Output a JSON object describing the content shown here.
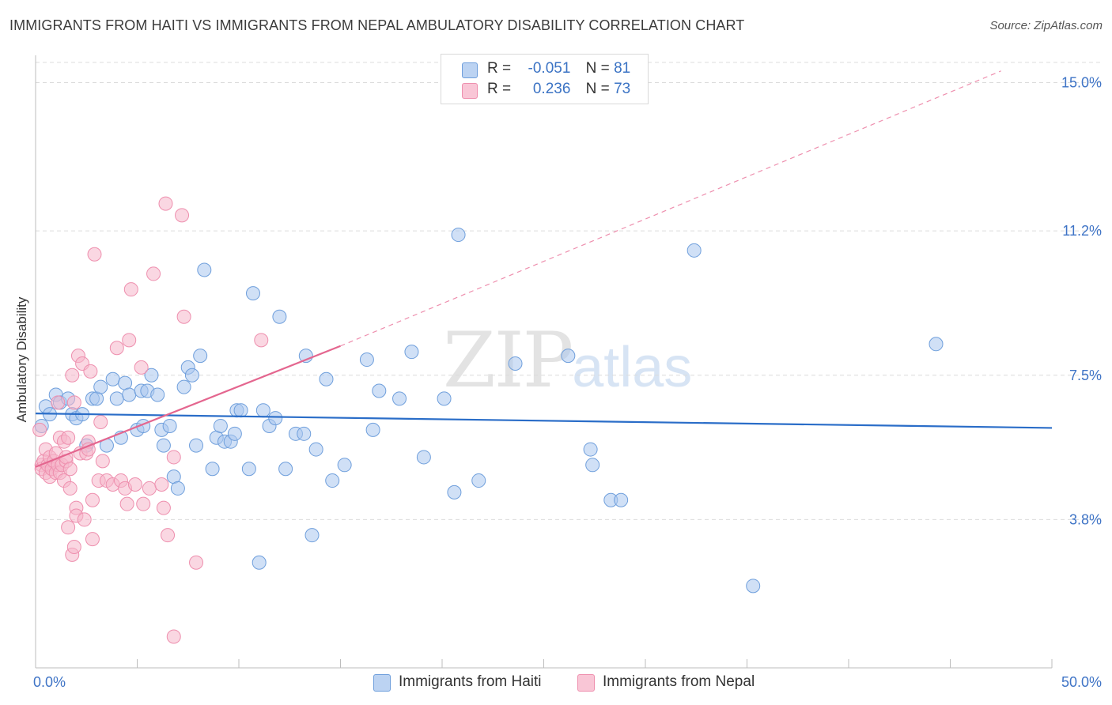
{
  "header": {
    "title": "IMMIGRANTS FROM HAITI VS IMMIGRANTS FROM NEPAL AMBULATORY DISABILITY CORRELATION CHART",
    "source": "Source: ZipAtlas.com"
  },
  "watermark": {
    "zip": "ZIP",
    "atlas": "atlas"
  },
  "legend": {
    "haiti": {
      "r_label": "R =",
      "r_value": "-0.051",
      "n_label": "N =",
      "n_value": "81"
    },
    "nepal": {
      "r_label": "R =",
      "r_value": "0.236",
      "n_label": "N =",
      "n_value": "73"
    }
  },
  "colors": {
    "haiti_fill": "#a9c6ee",
    "haiti_stroke": "#6f9fdc",
    "haiti_line": "#2a6dc8",
    "nepal_fill": "#f6b6ca",
    "nepal_stroke": "#ee8fae",
    "nepal_line": "#e4668f",
    "tick_label": "#3f74c6",
    "grid": "#dcdcdc"
  },
  "chart_data": {
    "type": "scatter",
    "title": "IMMIGRANTS FROM HAITI VS IMMIGRANTS FROM NEPAL AMBULATORY DISABILITY CORRELATION CHART",
    "xlabel": "",
    "ylabel": "Ambulatory Disability",
    "xlim": [
      0,
      50
    ],
    "ylim": [
      0,
      15.7
    ],
    "x_tick_labels": [
      {
        "value": 0,
        "label": "0.0%"
      },
      {
        "value": 50,
        "label": "50.0%"
      }
    ],
    "y_tick_labels": [
      {
        "value": 3.8,
        "label": "3.8%"
      },
      {
        "value": 7.5,
        "label": "7.5%"
      },
      {
        "value": 11.2,
        "label": "11.2%"
      },
      {
        "value": 15.0,
        "label": "15.0%"
      }
    ],
    "grid": true,
    "legend_position": "bottom",
    "series": [
      {
        "name": "Immigrants from Haiti",
        "color": "#a9c6ee",
        "trend": {
          "x": [
            0,
            50
          ],
          "y": [
            6.52,
            6.15
          ]
        },
        "points": [
          [
            0.3,
            6.2
          ],
          [
            0.5,
            6.7
          ],
          [
            0.7,
            6.5
          ],
          [
            1,
            7.0
          ],
          [
            1.2,
            6.8
          ],
          [
            1.6,
            6.9
          ],
          [
            1.8,
            6.5
          ],
          [
            2,
            6.4
          ],
          [
            2.3,
            6.5
          ],
          [
            2.5,
            5.7
          ],
          [
            2.8,
            6.9
          ],
          [
            3,
            6.9
          ],
          [
            3.2,
            7.2
          ],
          [
            3.5,
            5.7
          ],
          [
            3.8,
            7.4
          ],
          [
            4,
            6.9
          ],
          [
            4.2,
            5.9
          ],
          [
            4.4,
            7.3
          ],
          [
            4.6,
            7.0
          ],
          [
            5,
            6.1
          ],
          [
            5.2,
            7.1
          ],
          [
            5.3,
            6.2
          ],
          [
            5.5,
            7.1
          ],
          [
            5.7,
            7.5
          ],
          [
            6,
            7.0
          ],
          [
            6.2,
            6.1
          ],
          [
            6.3,
            5.7
          ],
          [
            6.6,
            6.2
          ],
          [
            6.8,
            4.9
          ],
          [
            7,
            4.6
          ],
          [
            7.3,
            7.2
          ],
          [
            7.5,
            7.7
          ],
          [
            7.7,
            7.5
          ],
          [
            7.9,
            5.7
          ],
          [
            8.1,
            8.0
          ],
          [
            8.3,
            10.2
          ],
          [
            8.7,
            5.1
          ],
          [
            8.9,
            5.9
          ],
          [
            9.1,
            6.2
          ],
          [
            9.3,
            5.8
          ],
          [
            9.6,
            5.8
          ],
          [
            9.8,
            6.0
          ],
          [
            9.9,
            6.6
          ],
          [
            10.1,
            6.6
          ],
          [
            10.5,
            5.1
          ],
          [
            10.7,
            9.6
          ],
          [
            11,
            2.7
          ],
          [
            11.2,
            6.6
          ],
          [
            11.5,
            6.2
          ],
          [
            11.8,
            6.4
          ],
          [
            12,
            9.0
          ],
          [
            12.3,
            5.1
          ],
          [
            12.8,
            6.0
          ],
          [
            13.2,
            6.0
          ],
          [
            13.3,
            8.0
          ],
          [
            13.6,
            3.4
          ],
          [
            13.8,
            5.6
          ],
          [
            14.3,
            7.4
          ],
          [
            14.6,
            4.8
          ],
          [
            15.2,
            5.2
          ],
          [
            16.3,
            7.9
          ],
          [
            16.6,
            6.1
          ],
          [
            16.9,
            7.1
          ],
          [
            17.9,
            6.9
          ],
          [
            18.5,
            8.1
          ],
          [
            19.1,
            5.4
          ],
          [
            20.1,
            6.9
          ],
          [
            20.6,
            4.5
          ],
          [
            20.8,
            11.1
          ],
          [
            21.8,
            4.8
          ],
          [
            23.6,
            7.8
          ],
          [
            26.2,
            8.0
          ],
          [
            27.3,
            5.6
          ],
          [
            27.4,
            5.2
          ],
          [
            28.3,
            4.3
          ],
          [
            28.8,
            4.3
          ],
          [
            32.4,
            10.7
          ],
          [
            35.3,
            2.1
          ],
          [
            44.3,
            8.3
          ]
        ]
      },
      {
        "name": "Immigrants from Nepal",
        "color": "#f6b6ca",
        "trend": {
          "x": [
            0,
            15
          ],
          "y": [
            5.15,
            8.25
          ]
        },
        "trend_extension": {
          "x": [
            15,
            47.5
          ],
          "y": [
            8.25,
            15.3
          ]
        },
        "points": [
          [
            0.2,
            6.1
          ],
          [
            0.3,
            5.2
          ],
          [
            0.3,
            5.1
          ],
          [
            0.4,
            5.3
          ],
          [
            0.5,
            5.0
          ],
          [
            0.5,
            5.6
          ],
          [
            0.6,
            5.2
          ],
          [
            0.7,
            4.9
          ],
          [
            0.7,
            5.4
          ],
          [
            0.8,
            5.1
          ],
          [
            0.9,
            5.3
          ],
          [
            1,
            5.0
          ],
          [
            1,
            5.5
          ],
          [
            1.1,
            5.2
          ],
          [
            1.1,
            6.8
          ],
          [
            1.2,
            5.9
          ],
          [
            1.2,
            5.0
          ],
          [
            1.3,
            5.2
          ],
          [
            1.4,
            5.8
          ],
          [
            1.4,
            4.8
          ],
          [
            1.5,
            5.3
          ],
          [
            1.5,
            5.4
          ],
          [
            1.6,
            5.9
          ],
          [
            1.6,
            3.6
          ],
          [
            1.7,
            5.1
          ],
          [
            1.7,
            4.6
          ],
          [
            1.8,
            2.9
          ],
          [
            1.8,
            7.5
          ],
          [
            1.9,
            3.1
          ],
          [
            1.9,
            6.8
          ],
          [
            2,
            4.1
          ],
          [
            2,
            3.9
          ],
          [
            2.1,
            8.0
          ],
          [
            2.2,
            5.5
          ],
          [
            2.3,
            7.8
          ],
          [
            2.4,
            3.8
          ],
          [
            2.5,
            5.5
          ],
          [
            2.6,
            5.8
          ],
          [
            2.6,
            5.6
          ],
          [
            2.7,
            7.6
          ],
          [
            2.8,
            3.3
          ],
          [
            2.8,
            4.3
          ],
          [
            2.9,
            10.6
          ],
          [
            3.1,
            4.8
          ],
          [
            3.2,
            6.3
          ],
          [
            3.3,
            5.3
          ],
          [
            3.5,
            4.8
          ],
          [
            3.8,
            4.7
          ],
          [
            4,
            8.2
          ],
          [
            4.2,
            4.8
          ],
          [
            4.4,
            4.6
          ],
          [
            4.5,
            4.2
          ],
          [
            4.6,
            8.4
          ],
          [
            4.7,
            9.7
          ],
          [
            4.9,
            4.7
          ],
          [
            5.2,
            7.7
          ],
          [
            5.3,
            4.2
          ],
          [
            5.6,
            4.6
          ],
          [
            5.8,
            10.1
          ],
          [
            6.2,
            4.7
          ],
          [
            6.3,
            4.1
          ],
          [
            6.4,
            11.9
          ],
          [
            6.5,
            3.4
          ],
          [
            6.8,
            0.8
          ],
          [
            6.8,
            5.4
          ],
          [
            7.2,
            11.6
          ],
          [
            7.3,
            9.0
          ],
          [
            7.9,
            2.7
          ],
          [
            11.1,
            8.4
          ]
        ]
      }
    ]
  },
  "bottom_legend": {
    "haiti_label": "Immigrants from Haiti",
    "nepal_label": "Immigrants from Nepal"
  }
}
